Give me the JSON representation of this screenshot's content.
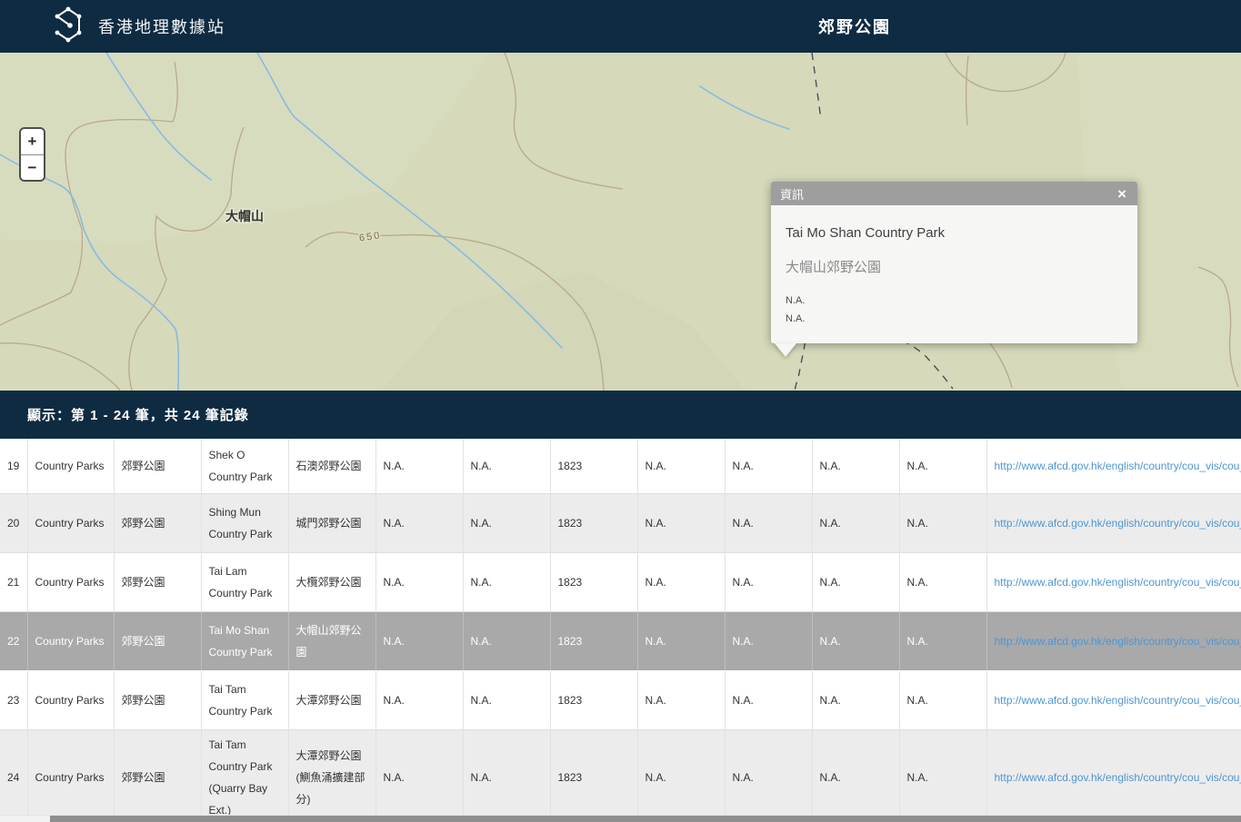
{
  "colors": {
    "header_bg": "#0e2b41",
    "map_bg": "#d6d9ba",
    "contour": "#b9a98c",
    "stream": "#88bbe0",
    "trail": "#4a4f54",
    "marker_fill": "#e4633c",
    "marker_stroke": "#b54e2b",
    "link": "#4e96d2",
    "selected_row_bg": "#a9a9a9",
    "alt_row_bg": "#ececec",
    "popup_header_bg": "#9e9e9e"
  },
  "header": {
    "brand": "香港地理數據站",
    "page_title": "郊野公園"
  },
  "map": {
    "zoom_in": "+",
    "zoom_out": "−",
    "labels": {
      "peak": "大帽山",
      "contour": "650"
    },
    "popup": {
      "header": "資訊",
      "close": "×",
      "title_en": "Tai Mo Shan Country Park",
      "title_zh": "大帽山郊野公園",
      "line1": "N.A.",
      "line2": "N.A."
    }
  },
  "statusbar": {
    "text": "顯示：第 1 - 24 筆，共 24 筆記錄"
  },
  "table": {
    "rows": [
      {
        "cells": [
          "19",
          "Country Parks",
          "郊野公園",
          "Shek O Country Park",
          "石澳郊野公園",
          "N.A.",
          "N.A.",
          "1823",
          "N.A.",
          "N.A.",
          "N.A.",
          "N.A."
        ],
        "url": "http://www.afcd.gov.hk/english/country/cou_vis/cou_",
        "selected": false
      },
      {
        "cells": [
          "20",
          "Country Parks",
          "郊野公園",
          "Shing Mun Country Park",
          "城門郊野公園",
          "N.A.",
          "N.A.",
          "1823",
          "N.A.",
          "N.A.",
          "N.A.",
          "N.A."
        ],
        "url": "http://www.afcd.gov.hk/english/country/cou_vis/cou_",
        "selected": false
      },
      {
        "cells": [
          "21",
          "Country Parks",
          "郊野公園",
          "Tai Lam Country Park",
          "大欖郊野公園",
          "N.A.",
          "N.A.",
          "1823",
          "N.A.",
          "N.A.",
          "N.A.",
          "N.A."
        ],
        "url": "http://www.afcd.gov.hk/english/country/cou_vis/cou_",
        "selected": false
      },
      {
        "cells": [
          "22",
          "Country Parks",
          "郊野公園",
          "Tai Mo Shan Country Park",
          "大帽山郊野公園",
          "N.A.",
          "N.A.",
          "1823",
          "N.A.",
          "N.A.",
          "N.A.",
          "N.A."
        ],
        "url": "http://www.afcd.gov.hk/english/country/cou_vis/cou_",
        "selected": true
      },
      {
        "cells": [
          "23",
          "Country Parks",
          "郊野公園",
          "Tai Tam Country Park",
          "大潭郊野公園",
          "N.A.",
          "N.A.",
          "1823",
          "N.A.",
          "N.A.",
          "N.A.",
          "N.A."
        ],
        "url": "http://www.afcd.gov.hk/english/country/cou_vis/cou_",
        "selected": false
      },
      {
        "cells": [
          "24",
          "Country Parks",
          "郊野公園",
          "Tai Tam Country Park (Quarry Bay Ext.)",
          "大潭郊野公園(鰂魚涌擴建部分)",
          "N.A.",
          "N.A.",
          "1823",
          "N.A.",
          "N.A.",
          "N.A.",
          "N.A."
        ],
        "url": "http://www.afcd.gov.hk/english/country/cou_vis/cou_",
        "selected": false
      }
    ]
  }
}
